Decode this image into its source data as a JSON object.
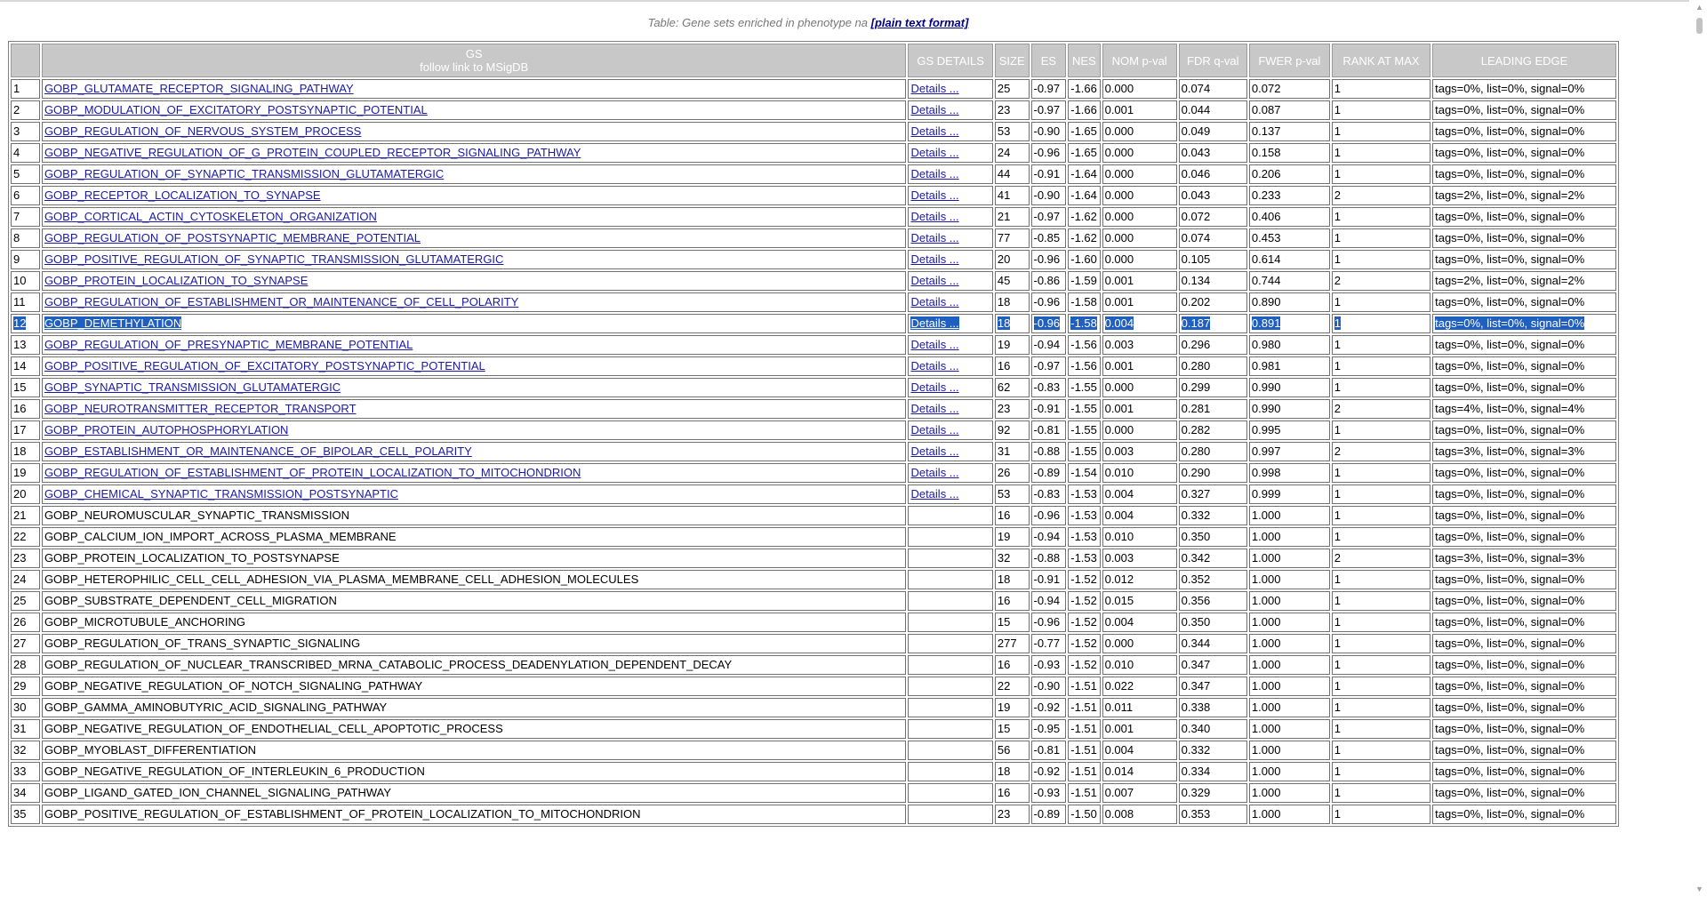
{
  "caption": {
    "text": "Table: Gene sets enriched in phenotype na ",
    "link": "[plain text format]"
  },
  "headers": {
    "index": "",
    "gs": "GS",
    "gs_sub": "follow link to MSigDB",
    "details": "GS DETAILS",
    "size": "SIZE",
    "es": "ES",
    "nes": "NES",
    "nom": "NOM p-val",
    "fdr": "FDR q-val",
    "fwer": "FWER p-val",
    "rank": "RANK AT MAX",
    "leading": "LEADING EDGE"
  },
  "details_label": "Details ...",
  "selected_row": 12,
  "rows": [
    {
      "n": "1",
      "name": "GOBP_GLUTAMATE_RECEPTOR_SIGNALING_PATHWAY",
      "link": true,
      "size": "25",
      "es": "-0.97",
      "nes": "-1.66",
      "nom": "0.000",
      "fdr": "0.074",
      "fwer": "0.072",
      "rank": "1",
      "leading": "tags=0%, list=0%, signal=0%"
    },
    {
      "n": "2",
      "name": "GOBP_MODULATION_OF_EXCITATORY_POSTSYNAPTIC_POTENTIAL",
      "link": true,
      "size": "23",
      "es": "-0.97",
      "nes": "-1.66",
      "nom": "0.001",
      "fdr": "0.044",
      "fwer": "0.087",
      "rank": "1",
      "leading": "tags=0%, list=0%, signal=0%"
    },
    {
      "n": "3",
      "name": "GOBP_REGULATION_OF_NERVOUS_SYSTEM_PROCESS",
      "link": true,
      "size": "53",
      "es": "-0.90",
      "nes": "-1.65",
      "nom": "0.000",
      "fdr": "0.049",
      "fwer": "0.137",
      "rank": "1",
      "leading": "tags=0%, list=0%, signal=0%"
    },
    {
      "n": "4",
      "name": "GOBP_NEGATIVE_REGULATION_OF_G_PROTEIN_COUPLED_RECEPTOR_SIGNALING_PATHWAY",
      "link": true,
      "size": "24",
      "es": "-0.96",
      "nes": "-1.65",
      "nom": "0.000",
      "fdr": "0.043",
      "fwer": "0.158",
      "rank": "1",
      "leading": "tags=0%, list=0%, signal=0%"
    },
    {
      "n": "5",
      "name": "GOBP_REGULATION_OF_SYNAPTIC_TRANSMISSION_GLUTAMATERGIC",
      "link": true,
      "size": "44",
      "es": "-0.91",
      "nes": "-1.64",
      "nom": "0.000",
      "fdr": "0.046",
      "fwer": "0.206",
      "rank": "1",
      "leading": "tags=0%, list=0%, signal=0%"
    },
    {
      "n": "6",
      "name": "GOBP_RECEPTOR_LOCALIZATION_TO_SYNAPSE",
      "link": true,
      "size": "41",
      "es": "-0.90",
      "nes": "-1.64",
      "nom": "0.000",
      "fdr": "0.043",
      "fwer": "0.233",
      "rank": "2",
      "leading": "tags=2%, list=0%, signal=2%"
    },
    {
      "n": "7",
      "name": "GOBP_CORTICAL_ACTIN_CYTOSKELETON_ORGANIZATION",
      "link": true,
      "size": "21",
      "es": "-0.97",
      "nes": "-1.62",
      "nom": "0.000",
      "fdr": "0.072",
      "fwer": "0.406",
      "rank": "1",
      "leading": "tags=0%, list=0%, signal=0%"
    },
    {
      "n": "8",
      "name": "GOBP_REGULATION_OF_POSTSYNAPTIC_MEMBRANE_POTENTIAL",
      "link": true,
      "size": "77",
      "es": "-0.85",
      "nes": "-1.62",
      "nom": "0.000",
      "fdr": "0.074",
      "fwer": "0.453",
      "rank": "1",
      "leading": "tags=0%, list=0%, signal=0%"
    },
    {
      "n": "9",
      "name": "GOBP_POSITIVE_REGULATION_OF_SYNAPTIC_TRANSMISSION_GLUTAMATERGIC",
      "link": true,
      "size": "20",
      "es": "-0.96",
      "nes": "-1.60",
      "nom": "0.000",
      "fdr": "0.105",
      "fwer": "0.614",
      "rank": "1",
      "leading": "tags=0%, list=0%, signal=0%"
    },
    {
      "n": "10",
      "name": "GOBP_PROTEIN_LOCALIZATION_TO_SYNAPSE",
      "link": true,
      "size": "45",
      "es": "-0.86",
      "nes": "-1.59",
      "nom": "0.001",
      "fdr": "0.134",
      "fwer": "0.744",
      "rank": "2",
      "leading": "tags=2%, list=0%, signal=2%"
    },
    {
      "n": "11",
      "name": "GOBP_REGULATION_OF_ESTABLISHMENT_OR_MAINTENANCE_OF_CELL_POLARITY",
      "link": true,
      "size": "18",
      "es": "-0.96",
      "nes": "-1.58",
      "nom": "0.001",
      "fdr": "0.202",
      "fwer": "0.890",
      "rank": "1",
      "leading": "tags=0%, list=0%, signal=0%"
    },
    {
      "n": "12",
      "name": "GOBP_DEMETHYLATION",
      "link": true,
      "size": "18",
      "es": "-0.96",
      "nes": "-1.58",
      "nom": "0.004",
      "fdr": "0.187",
      "fwer": "0.891",
      "rank": "1",
      "leading": "tags=0%, list=0%, signal=0%"
    },
    {
      "n": "13",
      "name": "GOBP_REGULATION_OF_PRESYNAPTIC_MEMBRANE_POTENTIAL",
      "link": true,
      "size": "19",
      "es": "-0.94",
      "nes": "-1.56",
      "nom": "0.003",
      "fdr": "0.296",
      "fwer": "0.980",
      "rank": "1",
      "leading": "tags=0%, list=0%, signal=0%"
    },
    {
      "n": "14",
      "name": "GOBP_POSITIVE_REGULATION_OF_EXCITATORY_POSTSYNAPTIC_POTENTIAL",
      "link": true,
      "size": "16",
      "es": "-0.97",
      "nes": "-1.56",
      "nom": "0.001",
      "fdr": "0.280",
      "fwer": "0.981",
      "rank": "1",
      "leading": "tags=0%, list=0%, signal=0%"
    },
    {
      "n": "15",
      "name": "GOBP_SYNAPTIC_TRANSMISSION_GLUTAMATERGIC",
      "link": true,
      "size": "62",
      "es": "-0.83",
      "nes": "-1.55",
      "nom": "0.000",
      "fdr": "0.299",
      "fwer": "0.990",
      "rank": "1",
      "leading": "tags=0%, list=0%, signal=0%"
    },
    {
      "n": "16",
      "name": "GOBP_NEUROTRANSMITTER_RECEPTOR_TRANSPORT",
      "link": true,
      "size": "23",
      "es": "-0.91",
      "nes": "-1.55",
      "nom": "0.001",
      "fdr": "0.281",
      "fwer": "0.990",
      "rank": "2",
      "leading": "tags=4%, list=0%, signal=4%"
    },
    {
      "n": "17",
      "name": "GOBP_PROTEIN_AUTOPHOSPHORYLATION",
      "link": true,
      "size": "92",
      "es": "-0.81",
      "nes": "-1.55",
      "nom": "0.000",
      "fdr": "0.282",
      "fwer": "0.995",
      "rank": "1",
      "leading": "tags=0%, list=0%, signal=0%"
    },
    {
      "n": "18",
      "name": "GOBP_ESTABLISHMENT_OR_MAINTENANCE_OF_BIPOLAR_CELL_POLARITY",
      "link": true,
      "size": "31",
      "es": "-0.88",
      "nes": "-1.55",
      "nom": "0.003",
      "fdr": "0.280",
      "fwer": "0.997",
      "rank": "2",
      "leading": "tags=3%, list=0%, signal=3%"
    },
    {
      "n": "19",
      "name": "GOBP_REGULATION_OF_ESTABLISHMENT_OF_PROTEIN_LOCALIZATION_TO_MITOCHONDRION",
      "link": true,
      "size": "26",
      "es": "-0.89",
      "nes": "-1.54",
      "nom": "0.010",
      "fdr": "0.290",
      "fwer": "0.998",
      "rank": "1",
      "leading": "tags=0%, list=0%, signal=0%"
    },
    {
      "n": "20",
      "name": "GOBP_CHEMICAL_SYNAPTIC_TRANSMISSION_POSTSYNAPTIC",
      "link": true,
      "size": "53",
      "es": "-0.83",
      "nes": "-1.53",
      "nom": "0.004",
      "fdr": "0.327",
      "fwer": "0.999",
      "rank": "1",
      "leading": "tags=0%, list=0%, signal=0%"
    },
    {
      "n": "21",
      "name": "GOBP_NEUROMUSCULAR_SYNAPTIC_TRANSMISSION",
      "link": false,
      "size": "16",
      "es": "-0.96",
      "nes": "-1.53",
      "nom": "0.004",
      "fdr": "0.332",
      "fwer": "1.000",
      "rank": "1",
      "leading": "tags=0%, list=0%, signal=0%"
    },
    {
      "n": "22",
      "name": "GOBP_CALCIUM_ION_IMPORT_ACROSS_PLASMA_MEMBRANE",
      "link": false,
      "size": "19",
      "es": "-0.94",
      "nes": "-1.53",
      "nom": "0.010",
      "fdr": "0.350",
      "fwer": "1.000",
      "rank": "1",
      "leading": "tags=0%, list=0%, signal=0%"
    },
    {
      "n": "23",
      "name": "GOBP_PROTEIN_LOCALIZATION_TO_POSTSYNAPSE",
      "link": false,
      "size": "32",
      "es": "-0.88",
      "nes": "-1.53",
      "nom": "0.003",
      "fdr": "0.342",
      "fwer": "1.000",
      "rank": "2",
      "leading": "tags=3%, list=0%, signal=3%"
    },
    {
      "n": "24",
      "name": "GOBP_HETEROPHILIC_CELL_CELL_ADHESION_VIA_PLASMA_MEMBRANE_CELL_ADHESION_MOLECULES",
      "link": false,
      "size": "18",
      "es": "-0.91",
      "nes": "-1.52",
      "nom": "0.012",
      "fdr": "0.352",
      "fwer": "1.000",
      "rank": "1",
      "leading": "tags=0%, list=0%, signal=0%"
    },
    {
      "n": "25",
      "name": "GOBP_SUBSTRATE_DEPENDENT_CELL_MIGRATION",
      "link": false,
      "size": "16",
      "es": "-0.94",
      "nes": "-1.52",
      "nom": "0.015",
      "fdr": "0.356",
      "fwer": "1.000",
      "rank": "1",
      "leading": "tags=0%, list=0%, signal=0%"
    },
    {
      "n": "26",
      "name": "GOBP_MICROTUBULE_ANCHORING",
      "link": false,
      "size": "15",
      "es": "-0.96",
      "nes": "-1.52",
      "nom": "0.004",
      "fdr": "0.350",
      "fwer": "1.000",
      "rank": "1",
      "leading": "tags=0%, list=0%, signal=0%"
    },
    {
      "n": "27",
      "name": "GOBP_REGULATION_OF_TRANS_SYNAPTIC_SIGNALING",
      "link": false,
      "size": "277",
      "es": "-0.77",
      "nes": "-1.52",
      "nom": "0.000",
      "fdr": "0.344",
      "fwer": "1.000",
      "rank": "1",
      "leading": "tags=0%, list=0%, signal=0%"
    },
    {
      "n": "28",
      "name": "GOBP_REGULATION_OF_NUCLEAR_TRANSCRIBED_MRNA_CATABOLIC_PROCESS_DEADENYLATION_DEPENDENT_DECAY",
      "link": false,
      "size": "16",
      "es": "-0.93",
      "nes": "-1.52",
      "nom": "0.010",
      "fdr": "0.347",
      "fwer": "1.000",
      "rank": "1",
      "leading": "tags=0%, list=0%, signal=0%"
    },
    {
      "n": "29",
      "name": "GOBP_NEGATIVE_REGULATION_OF_NOTCH_SIGNALING_PATHWAY",
      "link": false,
      "size": "22",
      "es": "-0.90",
      "nes": "-1.51",
      "nom": "0.022",
      "fdr": "0.347",
      "fwer": "1.000",
      "rank": "1",
      "leading": "tags=0%, list=0%, signal=0%"
    },
    {
      "n": "30",
      "name": "GOBP_GAMMA_AMINOBUTYRIC_ACID_SIGNALING_PATHWAY",
      "link": false,
      "size": "19",
      "es": "-0.92",
      "nes": "-1.51",
      "nom": "0.011",
      "fdr": "0.338",
      "fwer": "1.000",
      "rank": "1",
      "leading": "tags=0%, list=0%, signal=0%"
    },
    {
      "n": "31",
      "name": "GOBP_NEGATIVE_REGULATION_OF_ENDOTHELIAL_CELL_APOPTOTIC_PROCESS",
      "link": false,
      "size": "15",
      "es": "-0.95",
      "nes": "-1.51",
      "nom": "0.001",
      "fdr": "0.340",
      "fwer": "1.000",
      "rank": "1",
      "leading": "tags=0%, list=0%, signal=0%"
    },
    {
      "n": "32",
      "name": "GOBP_MYOBLAST_DIFFERENTIATION",
      "link": false,
      "size": "56",
      "es": "-0.81",
      "nes": "-1.51",
      "nom": "0.004",
      "fdr": "0.332",
      "fwer": "1.000",
      "rank": "1",
      "leading": "tags=0%, list=0%, signal=0%"
    },
    {
      "n": "33",
      "name": "GOBP_NEGATIVE_REGULATION_OF_INTERLEUKIN_6_PRODUCTION",
      "link": false,
      "size": "18",
      "es": "-0.92",
      "nes": "-1.51",
      "nom": "0.014",
      "fdr": "0.334",
      "fwer": "1.000",
      "rank": "1",
      "leading": "tags=0%, list=0%, signal=0%"
    },
    {
      "n": "34",
      "name": "GOBP_LIGAND_GATED_ION_CHANNEL_SIGNALING_PATHWAY",
      "link": false,
      "size": "16",
      "es": "-0.93",
      "nes": "-1.51",
      "nom": "0.007",
      "fdr": "0.329",
      "fwer": "1.000",
      "rank": "1",
      "leading": "tags=0%, list=0%, signal=0%"
    },
    {
      "n": "35",
      "name": "GOBP_POSITIVE_REGULATION_OF_ESTABLISHMENT_OF_PROTEIN_LOCALIZATION_TO_MITOCHONDRION",
      "link": false,
      "size": "23",
      "es": "-0.89",
      "nes": "-1.50",
      "nom": "0.008",
      "fdr": "0.353",
      "fwer": "1.000",
      "rank": "1",
      "leading": "tags=0%, list=0%, signal=0%"
    }
  ],
  "scrollbar": {
    "up_icon": "triangle-up",
    "down_icon": "triangle-down"
  }
}
